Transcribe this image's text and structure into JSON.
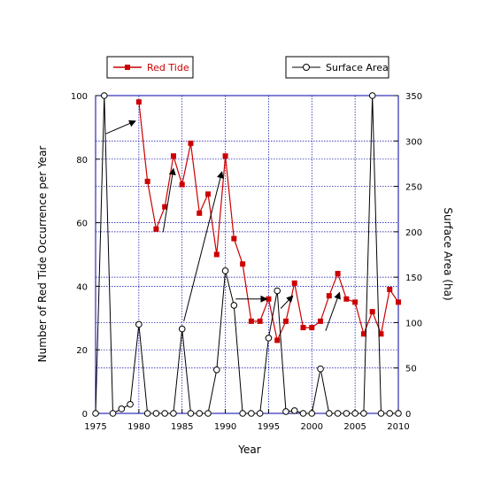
{
  "chart_data": {
    "type": "line",
    "x": [
      1975,
      1976,
      1977,
      1978,
      1979,
      1980,
      1981,
      1982,
      1983,
      1984,
      1985,
      1986,
      1987,
      1988,
      1989,
      1990,
      1991,
      1992,
      1993,
      1994,
      1995,
      1996,
      1997,
      1998,
      1999,
      2000,
      2001,
      2002,
      2003,
      2004,
      2005,
      2006,
      2007,
      2008,
      2009,
      2010
    ],
    "xlabel": "Year",
    "ylabel_left": "Number of Red Tide Occurrence per Year",
    "ylabel_right": "Surface Area (ha)",
    "xlim": [
      1975,
      2010
    ],
    "ylim_left": [
      0,
      100
    ],
    "ylim_right": [
      0,
      350
    ],
    "x_ticks": [
      1975,
      1980,
      1985,
      1990,
      1995,
      2000,
      2005,
      2010
    ],
    "y_left_ticks": [
      0,
      20,
      40,
      60,
      80,
      100
    ],
    "y_right_ticks": [
      0,
      50,
      100,
      150,
      200,
      250,
      300,
      350
    ],
    "grid": true,
    "legend_position": "top",
    "series": [
      {
        "name": "Red Tide",
        "axis": "left",
        "color": "#cc0000",
        "marker": "filled-square",
        "x": [
          1980,
          1981,
          1982,
          1983,
          1984,
          1985,
          1986,
          1987,
          1988,
          1989,
          1990,
          1991,
          1992,
          1993,
          1994,
          1995,
          1996,
          1997,
          1998,
          1999,
          2000,
          2001,
          2002,
          2003,
          2004,
          2005,
          2006,
          2007,
          2008,
          2009,
          2010
        ],
        "values": [
          98,
          73,
          58,
          65,
          81,
          72,
          85,
          63,
          69,
          50,
          81,
          55,
          47,
          29,
          29,
          36,
          23,
          29,
          41,
          27,
          27,
          29,
          37,
          44,
          36,
          35,
          25,
          32,
          25,
          39,
          35
        ]
      },
      {
        "name": "Surface Area",
        "axis": "right",
        "color": "#000000",
        "marker": "open-circle",
        "x": [
          1975,
          1976,
          1977,
          1978,
          1979,
          1980,
          1981,
          1982,
          1983,
          1984,
          1985,
          1986,
          1987,
          1988,
          1989,
          1990,
          1991,
          1992,
          1993,
          1994,
          1995,
          1996,
          1997,
          1998,
          1999,
          2000,
          2001,
          2002,
          2003,
          2004,
          2005,
          2006,
          2007,
          2008,
          2009,
          2010
        ],
        "values": [
          0,
          350,
          0,
          5,
          10,
          98,
          0,
          0,
          0,
          0,
          93,
          0,
          0,
          0,
          48,
          157,
          119,
          0,
          0,
          0,
          83,
          135,
          2,
          3,
          0,
          0,
          49,
          0,
          0,
          0,
          0,
          0,
          350,
          0,
          0,
          0
        ]
      }
    ],
    "annotations": [
      {
        "from": [
          1976.2,
          88
        ],
        "to": [
          1979.6,
          92
        ]
      },
      {
        "from": [
          1982.8,
          57
        ],
        "to": [
          1984.0,
          77
        ]
      },
      {
        "from": [
          1985.2,
          29
        ],
        "to": [
          1989.6,
          76
        ]
      },
      {
        "from": [
          1991.2,
          36
        ],
        "to": [
          1994.8,
          36
        ]
      },
      {
        "from": [
          1996.4,
          33
        ],
        "to": [
          1997.8,
          37
        ]
      },
      {
        "from": [
          2001.6,
          26
        ],
        "to": [
          2003.2,
          38
        ]
      }
    ]
  }
}
